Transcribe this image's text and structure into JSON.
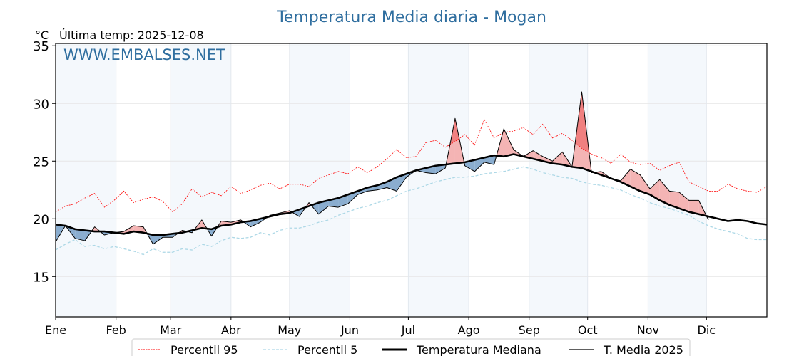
{
  "chart_data": {
    "type": "line",
    "title": "Temperatura Media diaria - Mogan",
    "unit_label": "°C",
    "subtitle": "Última temp: 2025-12-08",
    "watermark": "WWW.EMBALSES.NET",
    "xlabel": "",
    "ylabel": "°C",
    "ylim": [
      11.5,
      35.2
    ],
    "xlim_days": [
      0,
      365
    ],
    "yticks": [
      15,
      20,
      25,
      30,
      35
    ],
    "xticks": [
      {
        "label": "Ene",
        "day": 0
      },
      {
        "label": "Feb",
        "day": 31
      },
      {
        "label": "Mar",
        "day": 59
      },
      {
        "label": "Abr",
        "day": 90
      },
      {
        "label": "May",
        "day": 120
      },
      {
        "label": "Jun",
        "day": 151
      },
      {
        "label": "Jul",
        "day": 181
      },
      {
        "label": "Ago",
        "day": 212
      },
      {
        "label": "Sep",
        "day": 243
      },
      {
        "label": "Oct",
        "day": 273
      },
      {
        "label": "Nov",
        "day": 304
      },
      {
        "label": "Dic",
        "day": 334
      }
    ],
    "shaded_months": [
      [
        0,
        31
      ],
      [
        59,
        90
      ],
      [
        120,
        151
      ],
      [
        181,
        212
      ],
      [
        243,
        273
      ],
      [
        304,
        334
      ]
    ],
    "grid": true,
    "legend_position": "bottom-center",
    "legend": [
      {
        "name": "Percentil 95",
        "style": "dotted",
        "color": "#ff0000"
      },
      {
        "name": "Percentil 5",
        "style": "dashed",
        "color": "#add8e6"
      },
      {
        "name": "Temperatura Mediana",
        "style": "thick",
        "color": "#000000"
      },
      {
        "name": "T. Media 2025",
        "style": "thin",
        "color": "#000000"
      }
    ],
    "fill_colors": {
      "above_median": "#f4b4b4",
      "above_p95": "#f08080",
      "below_median": "#8aadcf",
      "below_p5": "#3f75a6"
    },
    "step_days": 5,
    "series": [
      {
        "name": "Percentil 95",
        "values": [
          20.6,
          21.1,
          21.3,
          21.8,
          22.2,
          21.0,
          21.6,
          22.4,
          21.4,
          21.7,
          21.9,
          21.5,
          20.6,
          21.3,
          22.6,
          21.9,
          22.3,
          22.0,
          22.8,
          22.2,
          22.5,
          22.9,
          23.1,
          22.6,
          23.0,
          23.0,
          22.8,
          23.5,
          23.8,
          24.1,
          23.9,
          24.5,
          24.0,
          24.5,
          25.2,
          26.0,
          25.3,
          25.4,
          26.6,
          26.8,
          26.2,
          26.7,
          27.3,
          26.4,
          28.6,
          27.0,
          27.5,
          27.6,
          27.9,
          27.3,
          28.2,
          27.0,
          27.4,
          26.8,
          26.1,
          25.6,
          25.3,
          24.8,
          25.6,
          24.9,
          24.7,
          24.8,
          24.2,
          24.6,
          24.9,
          23.2,
          22.8,
          22.4,
          22.4,
          23.0,
          22.6,
          22.4,
          22.3,
          22.8
        ]
      },
      {
        "name": "Percentil 5",
        "values": [
          17.3,
          17.8,
          18.2,
          17.6,
          17.7,
          17.4,
          17.6,
          17.4,
          17.2,
          16.9,
          17.4,
          17.1,
          17.1,
          17.4,
          17.3,
          17.8,
          17.6,
          18.1,
          18.4,
          18.3,
          18.4,
          18.8,
          18.6,
          19.0,
          19.2,
          19.2,
          19.4,
          19.7,
          19.9,
          20.3,
          20.6,
          20.9,
          21.1,
          21.4,
          21.6,
          22.0,
          22.4,
          22.6,
          22.9,
          23.2,
          23.4,
          23.6,
          23.6,
          23.7,
          23.9,
          24.0,
          24.1,
          24.3,
          24.5,
          24.3,
          24.0,
          23.8,
          23.6,
          23.5,
          23.2,
          23.0,
          22.9,
          22.7,
          22.5,
          22.1,
          21.8,
          21.4,
          21.1,
          20.9,
          20.6,
          20.3,
          19.8,
          19.4,
          19.1,
          18.9,
          18.7,
          18.3,
          18.2,
          18.2
        ]
      },
      {
        "name": "Temperatura Mediana",
        "values": [
          19.5,
          19.4,
          19.1,
          19.0,
          18.9,
          18.9,
          18.8,
          18.7,
          18.9,
          18.8,
          18.6,
          18.6,
          18.7,
          18.8,
          19.0,
          19.2,
          19.1,
          19.4,
          19.5,
          19.7,
          19.8,
          20.0,
          20.2,
          20.4,
          20.5,
          20.8,
          21.1,
          21.4,
          21.6,
          21.8,
          22.1,
          22.4,
          22.7,
          22.9,
          23.2,
          23.6,
          23.9,
          24.2,
          24.4,
          24.6,
          24.7,
          24.8,
          24.9,
          25.1,
          25.3,
          25.5,
          25.4,
          25.6,
          25.4,
          25.2,
          25.0,
          24.8,
          24.7,
          24.5,
          24.4,
          24.1,
          23.8,
          23.5,
          23.2,
          22.8,
          22.4,
          22.1,
          21.6,
          21.2,
          20.9,
          20.6,
          20.4,
          20.2,
          20.0,
          19.8,
          19.9,
          19.8,
          19.6,
          19.5
        ]
      },
      {
        "name": "T. Media 2025",
        "values": [
          18.0,
          19.4,
          18.3,
          18.1,
          19.3,
          18.6,
          18.8,
          18.9,
          19.4,
          19.3,
          17.8,
          18.4,
          18.4,
          19.0,
          18.8,
          19.9,
          18.5,
          19.8,
          19.7,
          19.9,
          19.3,
          19.7,
          20.3,
          20.5,
          20.7,
          20.2,
          21.4,
          20.4,
          21.1,
          21.0,
          21.3,
          22.1,
          22.4,
          22.5,
          22.7,
          22.4,
          23.6,
          24.2,
          24.0,
          23.9,
          24.4,
          28.7,
          24.6,
          24.1,
          24.9,
          24.7,
          27.8,
          26.0,
          25.4,
          25.9,
          25.4,
          25.0,
          25.8,
          24.5,
          31.0,
          24.0,
          24.1,
          23.5,
          23.3,
          24.3,
          23.8,
          22.6,
          23.4,
          22.4,
          22.3,
          21.6,
          21.6,
          19.9
        ]
      }
    ]
  }
}
